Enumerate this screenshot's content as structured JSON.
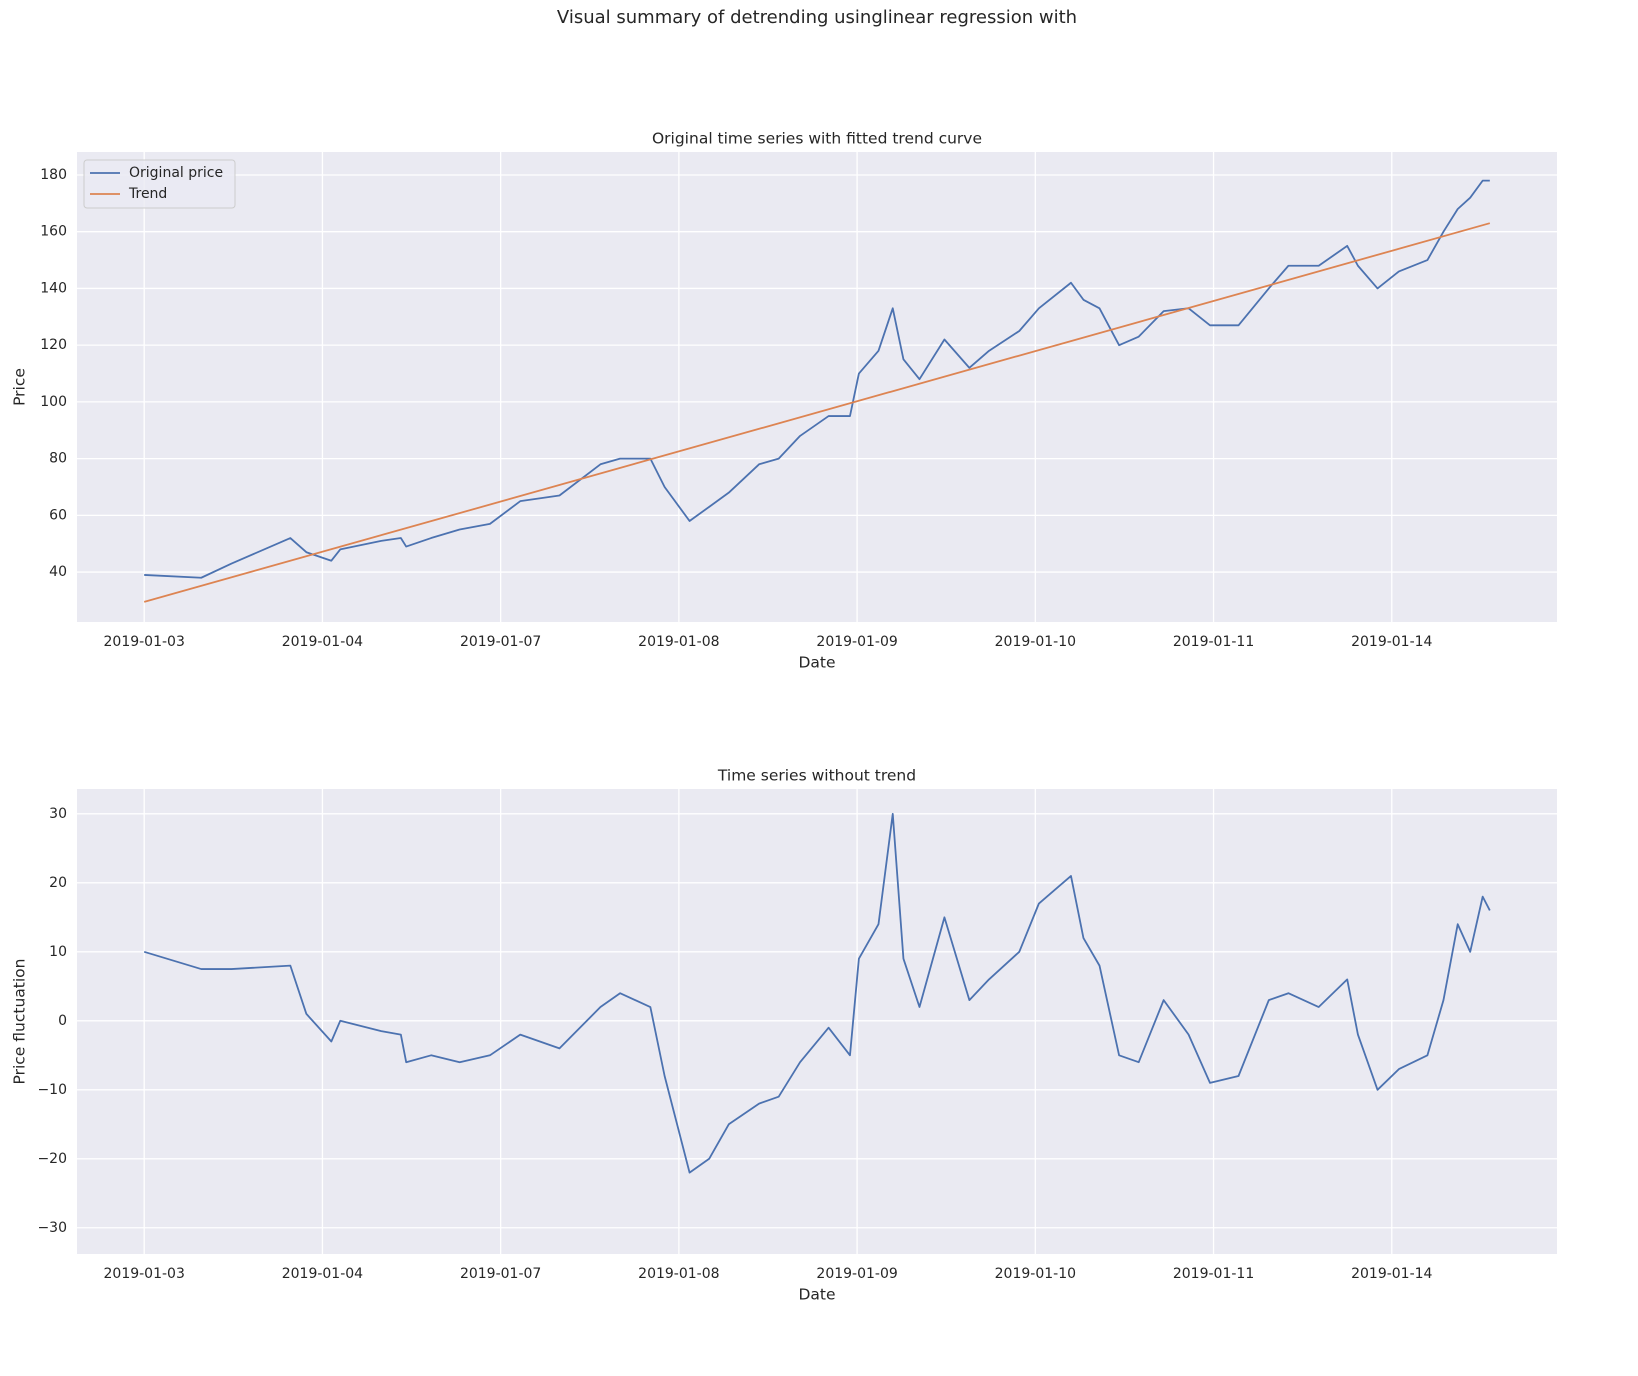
{
  "title": "Visual summary of detrending usinglinear regression with",
  "chart_data": [
    {
      "type": "line",
      "title": "Original time series with fitted trend curve",
      "xlabel": "Date",
      "ylabel": "Price",
      "xlim": [
        -37.7,
        792.7
      ],
      "ylim": [
        22.4,
        188.1
      ],
      "xticks": [
        {
          "value": 0,
          "label": "2019-01-03"
        },
        {
          "value": 100,
          "label": "2019-01-04"
        },
        {
          "value": 200,
          "label": "2019-01-07"
        },
        {
          "value": 300,
          "label": "2019-01-08"
        },
        {
          "value": 400,
          "label": "2019-01-09"
        },
        {
          "value": 500,
          "label": "2019-01-10"
        },
        {
          "value": 600,
          "label": "2019-01-11"
        },
        {
          "value": 700,
          "label": "2019-01-14"
        }
      ],
      "yticks": [
        40,
        60,
        80,
        100,
        120,
        140,
        160,
        180
      ],
      "grid": true,
      "legend": "upper left",
      "series": [
        {
          "name": "Original price",
          "color": "#4c72b0",
          "x": [
            0,
            32,
            49,
            82,
            91,
            105,
            110,
            133,
            144,
            147,
            161,
            177,
            194,
            211,
            233,
            256,
            267,
            284,
            292,
            306,
            317,
            328,
            345,
            356,
            368,
            384,
            396,
            401,
            412,
            420,
            426,
            435,
            449,
            463,
            474,
            491,
            502,
            520,
            527,
            536,
            547,
            558,
            572,
            586,
            598,
            614,
            631,
            642,
            659,
            675,
            681,
            692,
            704,
            720,
            729,
            737,
            744,
            751,
            755
          ],
          "values": [
            39,
            38,
            43,
            52,
            47,
            44,
            48,
            51,
            52,
            49,
            52,
            55,
            57,
            65,
            67,
            78,
            80,
            80,
            70,
            58,
            63,
            68,
            78,
            80,
            88,
            95,
            95,
            110,
            118,
            133,
            115,
            108,
            122,
            112,
            118,
            125,
            133,
            142,
            136,
            133,
            120,
            123,
            132,
            133,
            127,
            127,
            140,
            148,
            148,
            155,
            148,
            140,
            146,
            150,
            160,
            168,
            172,
            178,
            178
          ]
        },
        {
          "name": "Trend",
          "color": "#dd8452",
          "x": [
            0,
            755
          ],
          "values": [
            29.5,
            163
          ]
        }
      ]
    },
    {
      "type": "line",
      "title": "Time series without trend",
      "xlabel": "Date",
      "ylabel": "Price fluctuation",
      "xlim": [
        -37.7,
        792.7
      ],
      "ylim": [
        -33.8,
        33.6
      ],
      "xticks": [
        {
          "value": 0,
          "label": "2019-01-03"
        },
        {
          "value": 100,
          "label": "2019-01-04"
        },
        {
          "value": 200,
          "label": "2019-01-07"
        },
        {
          "value": 300,
          "label": "2019-01-08"
        },
        {
          "value": 400,
          "label": "2019-01-09"
        },
        {
          "value": 500,
          "label": "2019-01-10"
        },
        {
          "value": 600,
          "label": "2019-01-11"
        },
        {
          "value": 700,
          "label": "2019-01-14"
        }
      ],
      "yticks": [
        {
          "value": -30,
          "label": "−30"
        },
        {
          "value": -20,
          "label": "−20"
        },
        {
          "value": -10,
          "label": "−10"
        },
        0,
        10,
        20,
        30
      ],
      "grid": true,
      "color": "#4c72b0",
      "x": [
        0,
        32,
        49,
        82,
        91,
        105,
        110,
        133,
        144,
        147,
        161,
        177,
        194,
        211,
        233,
        256,
        267,
        284,
        292,
        306,
        317,
        328,
        345,
        356,
        368,
        384,
        396,
        401,
        412,
        420,
        426,
        435,
        449,
        463,
        474,
        491,
        502,
        520,
        527,
        536,
        547,
        558,
        572,
        586,
        598,
        614,
        631,
        642,
        659,
        675,
        681,
        692,
        704,
        720,
        729,
        737,
        744,
        751,
        755
      ],
      "values": [
        10,
        7.5,
        7.5,
        8,
        1,
        -3,
        0,
        -1.5,
        -2,
        -6,
        -5,
        -6,
        -5,
        -2,
        -4,
        2,
        4,
        2,
        -8,
        -22,
        -20,
        -15,
        -12,
        -11,
        -6,
        -1,
        -5,
        9,
        14,
        30,
        9,
        2,
        15,
        3,
        6,
        10,
        17,
        21,
        12,
        8,
        -5,
        -6,
        3,
        -2,
        -9,
        -8,
        3,
        4,
        2,
        6,
        -2,
        -10,
        -7,
        -5,
        3,
        14,
        10,
        18,
        16
      ]
    }
  ]
}
